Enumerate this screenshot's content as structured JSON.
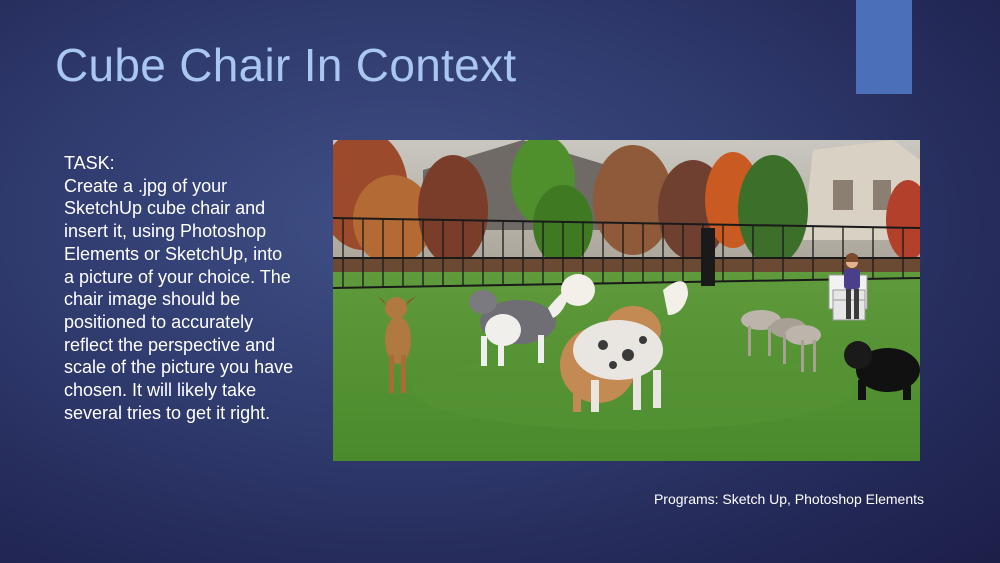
{
  "slide": {
    "title": "Cube Chair In Context",
    "task_heading": "TASK:",
    "task_text": " Create a .jpg of your SketchUp cube chair and insert it, using Photoshop Elements or SketchUp, into a picture of your choice. The chair image should be positioned to accurately reflect the perspective and scale of the picture you have chosen. It will likely take several tries to get it right.",
    "caption": "Programs: Sketch Up, Photoshop Elements"
  },
  "colors": {
    "accent_tab": "#4b6fb8",
    "title": "#a9c7f0",
    "body_text": "#ffffff"
  }
}
